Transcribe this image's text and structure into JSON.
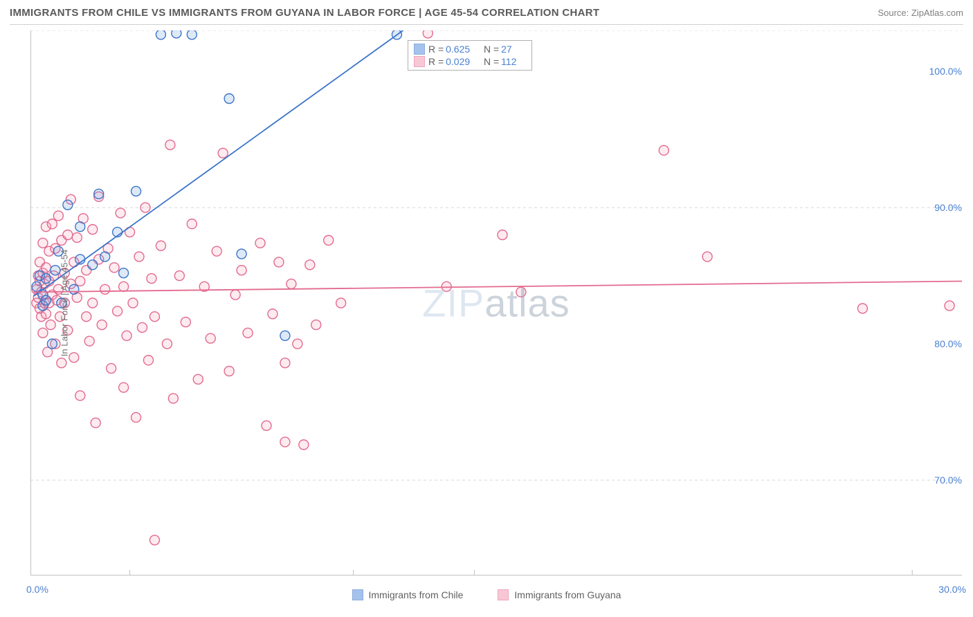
{
  "header": {
    "title": "IMMIGRANTS FROM CHILE VS IMMIGRANTS FROM GUYANA IN LABOR FORCE | AGE 45-54 CORRELATION CHART",
    "source_prefix": "Source: ",
    "source_name": "ZipAtlas.com"
  },
  "watermark": {
    "part1": "ZIP",
    "part2": "atlas"
  },
  "y_axis": {
    "label": "In Labor Force | Age 45-54"
  },
  "chart": {
    "type": "scatter",
    "xlim": [
      0,
      30
    ],
    "ylim": [
      63,
      103
    ],
    "x_ticks_major": [
      0,
      30
    ],
    "x_ticks_minor": [
      3.2,
      10.4,
      14.3,
      28.4
    ],
    "y_ticks": [
      70,
      80,
      90,
      100
    ],
    "y_gridlines": [
      70,
      90,
      103
    ],
    "x_tick_labels": {
      "0": "0.0%",
      "30": "30.0%"
    },
    "y_tick_labels": {
      "70": "70.0%",
      "80": "80.0%",
      "90": "90.0%",
      "100": "100.0%"
    },
    "grid_color": "#d8d8d8",
    "axis_color": "#c0c0c0",
    "background_color": "#ffffff",
    "marker_radius": 7,
    "marker_stroke_width": 1.4,
    "marker_fill_opacity": 0.22,
    "line_width": 1.8,
    "series": [
      {
        "name": "Immigrants from Chile",
        "color_stroke": "#3b74c9",
        "color_fill": "#6a9be0",
        "R": "0.625",
        "N": "27",
        "trend": {
          "x1": 0.1,
          "y1": 83.5,
          "x2": 12.0,
          "y2": 103.0
        },
        "points": [
          [
            0.2,
            84.2
          ],
          [
            0.3,
            85.0
          ],
          [
            0.4,
            82.8
          ],
          [
            0.4,
            83.6
          ],
          [
            0.5,
            83.2
          ],
          [
            0.5,
            84.8
          ],
          [
            0.7,
            80.0
          ],
          [
            0.8,
            85.4
          ],
          [
            0.9,
            86.8
          ],
          [
            1.0,
            83.0
          ],
          [
            1.2,
            90.2
          ],
          [
            1.4,
            84.0
          ],
          [
            1.6,
            88.6
          ],
          [
            1.6,
            86.2
          ],
          [
            2.0,
            85.8
          ],
          [
            2.2,
            91.0
          ],
          [
            2.4,
            86.4
          ],
          [
            2.8,
            88.2
          ],
          [
            3.0,
            85.2
          ],
          [
            3.4,
            91.2
          ],
          [
            4.2,
            102.7
          ],
          [
            4.7,
            102.8
          ],
          [
            5.2,
            102.7
          ],
          [
            6.4,
            98.0
          ],
          [
            6.8,
            86.6
          ],
          [
            8.2,
            80.6
          ],
          [
            11.8,
            102.7
          ]
        ]
      },
      {
        "name": "Immigrants from Guyana",
        "color_stroke": "#e36a8f",
        "color_fill": "#f4a3bc",
        "R": "0.029",
        "N": "112",
        "trend": {
          "x1": 0.1,
          "y1": 83.8,
          "x2": 30.0,
          "y2": 84.6
        },
        "points": [
          [
            0.2,
            83.0
          ],
          [
            0.2,
            84.0
          ],
          [
            0.25,
            83.4
          ],
          [
            0.25,
            85.0
          ],
          [
            0.3,
            82.6
          ],
          [
            0.3,
            84.6
          ],
          [
            0.3,
            86.0
          ],
          [
            0.35,
            83.8
          ],
          [
            0.35,
            82.0
          ],
          [
            0.4,
            85.2
          ],
          [
            0.4,
            80.8
          ],
          [
            0.4,
            87.4
          ],
          [
            0.45,
            83.0
          ],
          [
            0.45,
            84.4
          ],
          [
            0.5,
            88.6
          ],
          [
            0.5,
            82.2
          ],
          [
            0.5,
            85.6
          ],
          [
            0.55,
            79.4
          ],
          [
            0.6,
            83.0
          ],
          [
            0.6,
            84.6
          ],
          [
            0.6,
            86.8
          ],
          [
            0.65,
            81.4
          ],
          [
            0.7,
            88.8
          ],
          [
            0.7,
            83.6
          ],
          [
            0.75,
            85.0
          ],
          [
            0.8,
            80.0
          ],
          [
            0.8,
            87.0
          ],
          [
            0.85,
            83.2
          ],
          [
            0.9,
            89.4
          ],
          [
            0.9,
            84.0
          ],
          [
            0.95,
            82.0
          ],
          [
            1.0,
            87.6
          ],
          [
            1.0,
            78.6
          ],
          [
            1.1,
            85.2
          ],
          [
            1.1,
            83.0
          ],
          [
            1.2,
            88.0
          ],
          [
            1.2,
            81.0
          ],
          [
            1.3,
            84.4
          ],
          [
            1.3,
            90.6
          ],
          [
            1.4,
            79.0
          ],
          [
            1.4,
            86.0
          ],
          [
            1.5,
            83.4
          ],
          [
            1.5,
            87.8
          ],
          [
            1.6,
            76.2
          ],
          [
            1.6,
            84.6
          ],
          [
            1.7,
            89.2
          ],
          [
            1.8,
            82.0
          ],
          [
            1.8,
            85.4
          ],
          [
            1.9,
            80.2
          ],
          [
            2.0,
            88.4
          ],
          [
            2.0,
            83.0
          ],
          [
            2.1,
            74.2
          ],
          [
            2.2,
            86.2
          ],
          [
            2.2,
            90.8
          ],
          [
            2.3,
            81.4
          ],
          [
            2.4,
            84.0
          ],
          [
            2.5,
            87.0
          ],
          [
            2.6,
            78.2
          ],
          [
            2.7,
            85.6
          ],
          [
            2.8,
            82.4
          ],
          [
            2.9,
            89.6
          ],
          [
            3.0,
            76.8
          ],
          [
            3.0,
            84.2
          ],
          [
            3.1,
            80.6
          ],
          [
            3.2,
            88.2
          ],
          [
            3.3,
            83.0
          ],
          [
            3.4,
            74.6
          ],
          [
            3.5,
            86.4
          ],
          [
            3.6,
            81.2
          ],
          [
            3.7,
            90.0
          ],
          [
            3.8,
            78.8
          ],
          [
            3.9,
            84.8
          ],
          [
            4.0,
            65.6
          ],
          [
            4.0,
            82.0
          ],
          [
            4.2,
            87.2
          ],
          [
            4.4,
            80.0
          ],
          [
            4.5,
            94.6
          ],
          [
            4.6,
            76.0
          ],
          [
            4.8,
            85.0
          ],
          [
            5.0,
            81.6
          ],
          [
            5.2,
            88.8
          ],
          [
            5.4,
            77.4
          ],
          [
            5.6,
            84.2
          ],
          [
            5.8,
            80.4
          ],
          [
            6.0,
            86.8
          ],
          [
            6.2,
            94.0
          ],
          [
            6.4,
            78.0
          ],
          [
            6.6,
            83.6
          ],
          [
            6.8,
            85.4
          ],
          [
            7.0,
            80.8
          ],
          [
            7.4,
            87.4
          ],
          [
            7.6,
            74.0
          ],
          [
            7.8,
            82.2
          ],
          [
            8.0,
            86.0
          ],
          [
            8.2,
            78.6
          ],
          [
            8.2,
            72.8
          ],
          [
            8.4,
            84.4
          ],
          [
            8.6,
            80.0
          ],
          [
            8.8,
            72.6
          ],
          [
            9.0,
            85.8
          ],
          [
            9.2,
            81.4
          ],
          [
            9.6,
            87.6
          ],
          [
            10.0,
            83.0
          ],
          [
            12.8,
            102.8
          ],
          [
            13.4,
            84.2
          ],
          [
            15.2,
            88.0
          ],
          [
            15.8,
            83.8
          ],
          [
            20.4,
            94.2
          ],
          [
            21.8,
            86.4
          ],
          [
            26.8,
            82.6
          ],
          [
            29.6,
            82.8
          ]
        ]
      }
    ]
  },
  "stat_box": {
    "R_label": "R =",
    "N_label": "N ="
  },
  "bottom_legend": {
    "item1": "Immigrants from Chile",
    "item2": "Immigrants from Guyana"
  }
}
